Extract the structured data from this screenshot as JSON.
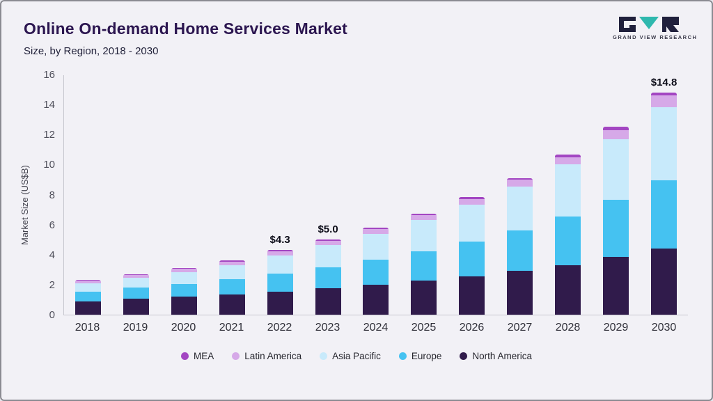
{
  "header": {
    "title": "Online On-demand Home Services Market",
    "subtitle": "Size, by Region, 2018 - 2030"
  },
  "logo": {
    "text": "GRAND VIEW RESEARCH",
    "dark_color": "#20203c",
    "teal_color": "#2fb8ae"
  },
  "chart_data": {
    "type": "bar",
    "stacked": true,
    "title": "Online On-demand Home Services Market Size, by Region, 2018 - 2030",
    "ylabel": "Market Size (US$B)",
    "xlabel": "",
    "ylim": [
      0,
      16
    ],
    "yticks": [
      0,
      2,
      4,
      6,
      8,
      10,
      12,
      14,
      16
    ],
    "grid": false,
    "legend_position": "bottom",
    "categories": [
      "2018",
      "2019",
      "2020",
      "2021",
      "2022",
      "2023",
      "2024",
      "2025",
      "2026",
      "2027",
      "2028",
      "2029",
      "2030"
    ],
    "series": [
      {
        "name": "North America",
        "color": "#301b4b",
        "values": [
          0.9,
          1.05,
          1.2,
          1.35,
          1.55,
          1.75,
          2.0,
          2.25,
          2.55,
          2.9,
          3.3,
          3.85,
          4.4
        ]
      },
      {
        "name": "Europe",
        "color": "#45c2f1",
        "values": [
          0.65,
          0.75,
          0.85,
          1.0,
          1.2,
          1.4,
          1.65,
          1.95,
          2.3,
          2.7,
          3.25,
          3.8,
          4.55
        ]
      },
      {
        "name": "Asia Pacific",
        "color": "#c8eafb",
        "values": [
          0.55,
          0.65,
          0.8,
          0.95,
          1.2,
          1.5,
          1.75,
          2.1,
          2.5,
          2.95,
          3.45,
          4.05,
          4.85
        ]
      },
      {
        "name": "Latin America",
        "color": "#d6a9e8",
        "values": [
          0.15,
          0.18,
          0.2,
          0.24,
          0.27,
          0.26,
          0.3,
          0.33,
          0.37,
          0.43,
          0.5,
          0.6,
          0.8
        ]
      },
      {
        "name": "MEA",
        "color": "#a346c2",
        "values": [
          0.05,
          0.07,
          0.08,
          0.08,
          0.08,
          0.09,
          0.1,
          0.1,
          0.12,
          0.13,
          0.15,
          0.2,
          0.2
        ]
      }
    ],
    "totals": [
      2.3,
      2.7,
      3.13,
      3.62,
      4.3,
      5.0,
      5.8,
      6.73,
      7.84,
      9.11,
      10.65,
      12.5,
      14.8
    ],
    "annotations": [
      {
        "category": "2022",
        "label": "$4.3"
      },
      {
        "category": "2023",
        "label": "$5.0"
      },
      {
        "category": "2030",
        "label": "$14.8"
      }
    ],
    "legend_order": [
      "MEA",
      "Latin America",
      "Asia Pacific",
      "Europe",
      "North America"
    ]
  }
}
